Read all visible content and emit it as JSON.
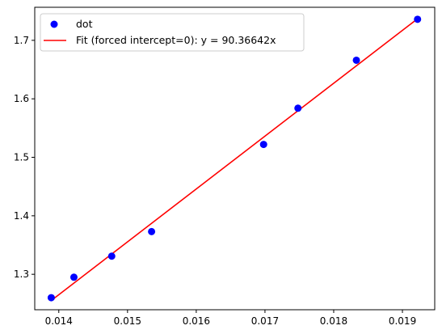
{
  "chart_data": {
    "type": "scatter",
    "title": "",
    "xlabel": "",
    "ylabel": "",
    "xlim": [
      0.01365,
      0.01947
    ],
    "ylim": [
      1.2394,
      1.7565
    ],
    "xticks": [
      0.014,
      0.015,
      0.016,
      0.017,
      0.018,
      0.019
    ],
    "xtick_labels": [
      "0.014",
      "0.015",
      "0.016",
      "0.017",
      "0.018",
      "0.019"
    ],
    "yticks": [
      1.3,
      1.4,
      1.5,
      1.6,
      1.7
    ],
    "ytick_labels": [
      "1.3",
      "1.4",
      "1.5",
      "1.6",
      "1.7"
    ],
    "grid": false,
    "legend_position": "top-left",
    "series": [
      {
        "name": "dot",
        "kind": "scatter",
        "color": "#0000ff",
        "points": [
          {
            "x": 0.01389,
            "y": 1.26
          },
          {
            "x": 0.01422,
            "y": 1.295
          },
          {
            "x": 0.01477,
            "y": 1.331
          },
          {
            "x": 0.01535,
            "y": 1.373
          },
          {
            "x": 0.01698,
            "y": 1.522
          },
          {
            "x": 0.01748,
            "y": 1.584
          },
          {
            "x": 0.01833,
            "y": 1.666
          },
          {
            "x": 0.01922,
            "y": 1.736
          }
        ]
      },
      {
        "name": "Fit (forced intercept=0): y = 90.36642x",
        "kind": "line",
        "color": "#ff0000",
        "slope": 90.36642,
        "intercept": 0,
        "x_range": [
          0.01389,
          0.01922
        ]
      }
    ]
  }
}
